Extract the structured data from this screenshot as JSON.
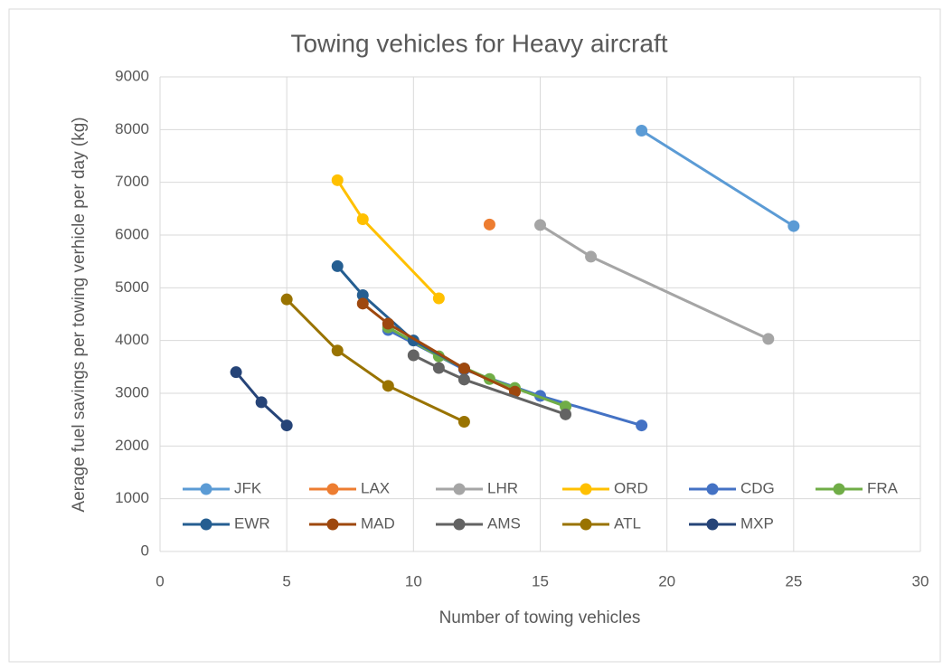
{
  "chart_data": {
    "type": "scatter-line",
    "title": "Towing vehicles for Heavy aircraft",
    "x_label": "Number of towing  vehicles",
    "y_label": "Aerage fuel savings per towing verhicle per day (kg)",
    "xlim": [
      0,
      30
    ],
    "xticks": [
      0,
      5,
      10,
      15,
      20,
      25,
      30
    ],
    "ylim": [
      0,
      9000
    ],
    "yticks": [
      0,
      1000,
      2000,
      3000,
      4000,
      5000,
      6000,
      7000,
      8000,
      9000
    ],
    "grid": true,
    "legend": "bottom",
    "series": [
      {
        "name": "JFK",
        "color": "#5b9bd5",
        "x": [
          19,
          25
        ],
        "values": [
          7980,
          6170
        ]
      },
      {
        "name": "LAX",
        "color": "#ed7d31",
        "x": [
          13
        ],
        "values": [
          6200
        ]
      },
      {
        "name": "LHR",
        "color": "#a5a5a5",
        "x": [
          15,
          17,
          24
        ],
        "values": [
          6190,
          5590,
          4030
        ]
      },
      {
        "name": "ORD",
        "color": "#ffc000",
        "x": [
          7,
          8,
          11
        ],
        "values": [
          7040,
          6300,
          4800
        ]
      },
      {
        "name": "CDG",
        "color": "#4472c4",
        "x": [
          9,
          12,
          15,
          19
        ],
        "values": [
          4200,
          3450,
          2950,
          2390
        ]
      },
      {
        "name": "FRA",
        "color": "#70ad47",
        "x": [
          9,
          11,
          13,
          14,
          16
        ],
        "values": [
          4250,
          3700,
          3270,
          3100,
          2750
        ]
      },
      {
        "name": "EWR",
        "color": "#255e91",
        "x": [
          7,
          8,
          10,
          12
        ],
        "values": [
          5410,
          4860,
          4000,
          3470
        ]
      },
      {
        "name": "MAD",
        "color": "#9e480e",
        "x": [
          8,
          9,
          12,
          14
        ],
        "values": [
          4700,
          4320,
          3470,
          3030
        ]
      },
      {
        "name": "AMS",
        "color": "#636363",
        "x": [
          10,
          11,
          12,
          16
        ],
        "values": [
          3720,
          3480,
          3260,
          2600
        ]
      },
      {
        "name": "ATL",
        "color": "#997300",
        "x": [
          5,
          7,
          9,
          12
        ],
        "values": [
          4780,
          3810,
          3140,
          2460
        ]
      },
      {
        "name": "MXP",
        "color": "#264478",
        "x": [
          3,
          4,
          5
        ],
        "values": [
          3400,
          2830,
          2390
        ]
      }
    ]
  }
}
